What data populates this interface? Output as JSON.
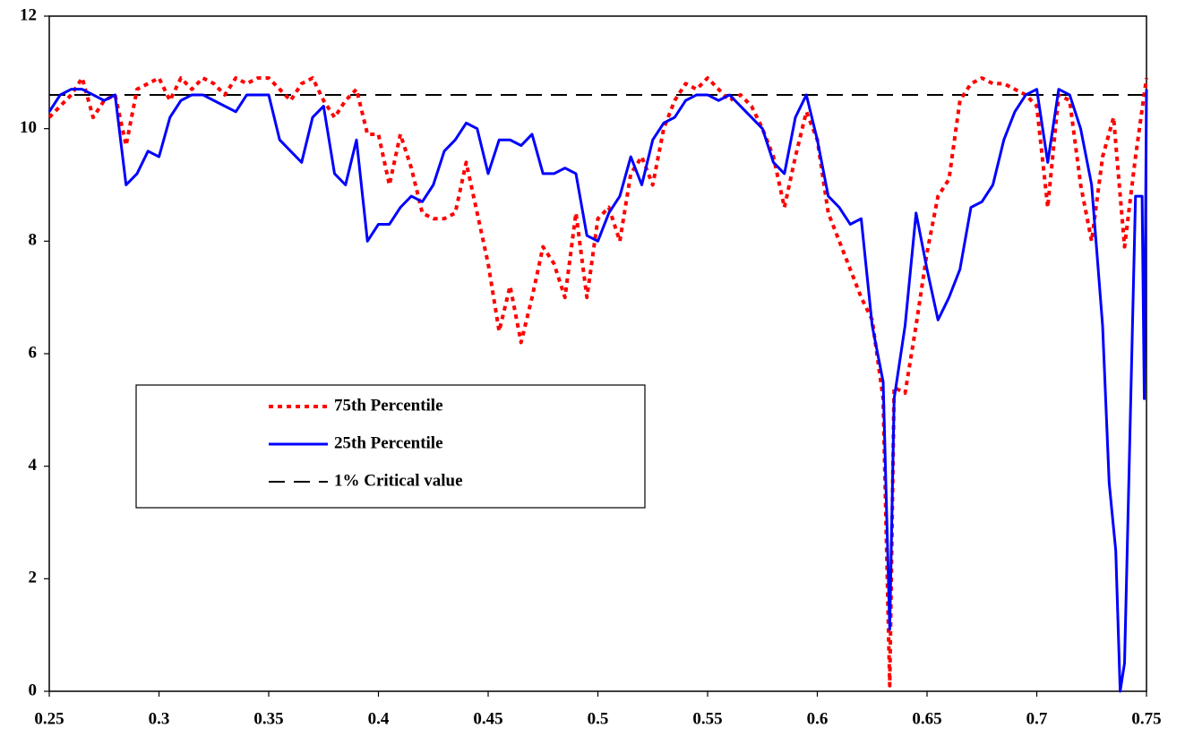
{
  "chart_data": {
    "type": "line",
    "series": [
      {
        "name": "75th Percentile",
        "color": "#ff0000",
        "dash": "dotted",
        "x": [
          0.25,
          0.255,
          0.26,
          0.265,
          0.27,
          0.275,
          0.28,
          0.285,
          0.29,
          0.295,
          0.3,
          0.305,
          0.31,
          0.315,
          0.32,
          0.325,
          0.33,
          0.335,
          0.34,
          0.345,
          0.35,
          0.355,
          0.36,
          0.365,
          0.37,
          0.375,
          0.38,
          0.385,
          0.39,
          0.395,
          0.4,
          0.405,
          0.41,
          0.415,
          0.42,
          0.425,
          0.43,
          0.435,
          0.44,
          0.445,
          0.45,
          0.455,
          0.46,
          0.465,
          0.47,
          0.475,
          0.48,
          0.485,
          0.49,
          0.495,
          0.5,
          0.505,
          0.51,
          0.515,
          0.52,
          0.525,
          0.53,
          0.535,
          0.54,
          0.545,
          0.55,
          0.555,
          0.56,
          0.565,
          0.57,
          0.575,
          0.58,
          0.585,
          0.59,
          0.595,
          0.6,
          0.605,
          0.61,
          0.615,
          0.62,
          0.625,
          0.63,
          0.633,
          0.635,
          0.64,
          0.645,
          0.65,
          0.655,
          0.66,
          0.665,
          0.67,
          0.675,
          0.68,
          0.685,
          0.69,
          0.695,
          0.7,
          0.705,
          0.71,
          0.715,
          0.72,
          0.725,
          0.73,
          0.735,
          0.74,
          0.745,
          0.75
        ],
        "values": [
          10.2,
          10.4,
          10.6,
          10.9,
          10.2,
          10.5,
          10.6,
          9.7,
          10.7,
          10.8,
          10.9,
          10.5,
          10.9,
          10.7,
          10.9,
          10.8,
          10.6,
          10.9,
          10.8,
          10.9,
          10.9,
          10.7,
          10.5,
          10.8,
          10.9,
          10.5,
          10.2,
          10.5,
          10.7,
          9.9,
          9.9,
          9.0,
          9.9,
          9.3,
          8.5,
          8.4,
          8.4,
          8.5,
          9.4,
          8.5,
          7.6,
          6.4,
          7.2,
          6.2,
          7.0,
          7.9,
          7.6,
          7.0,
          8.5,
          7.0,
          8.4,
          8.6,
          8.0,
          9.2,
          9.5,
          9.0,
          10.0,
          10.5,
          10.8,
          10.7,
          10.9,
          10.7,
          10.5,
          10.6,
          10.4,
          10.0,
          9.5,
          8.6,
          9.5,
          10.3,
          9.8,
          8.5,
          8.0,
          7.5,
          7.0,
          6.6,
          5.2,
          0.1,
          5.4,
          5.3,
          6.5,
          7.8,
          8.8,
          9.1,
          10.5,
          10.8,
          10.9,
          10.8,
          10.8,
          10.7,
          10.6,
          10.4,
          8.6,
          10.6,
          10.5,
          9.0,
          8.0,
          9.5,
          10.2,
          7.9,
          9.5,
          10.9
        ]
      },
      {
        "name": "25th Percentile",
        "color": "#0000ff",
        "dash": "solid",
        "x": [
          0.25,
          0.255,
          0.26,
          0.265,
          0.27,
          0.275,
          0.28,
          0.285,
          0.29,
          0.295,
          0.3,
          0.305,
          0.31,
          0.315,
          0.32,
          0.325,
          0.33,
          0.335,
          0.34,
          0.345,
          0.35,
          0.355,
          0.36,
          0.365,
          0.37,
          0.375,
          0.38,
          0.385,
          0.39,
          0.395,
          0.4,
          0.405,
          0.41,
          0.415,
          0.42,
          0.425,
          0.43,
          0.435,
          0.44,
          0.445,
          0.45,
          0.455,
          0.46,
          0.465,
          0.47,
          0.475,
          0.48,
          0.485,
          0.49,
          0.495,
          0.5,
          0.505,
          0.51,
          0.515,
          0.52,
          0.525,
          0.53,
          0.535,
          0.54,
          0.545,
          0.55,
          0.555,
          0.56,
          0.565,
          0.57,
          0.575,
          0.58,
          0.585,
          0.59,
          0.595,
          0.6,
          0.605,
          0.61,
          0.615,
          0.62,
          0.625,
          0.63,
          0.633,
          0.635,
          0.64,
          0.645,
          0.65,
          0.655,
          0.66,
          0.665,
          0.67,
          0.675,
          0.68,
          0.685,
          0.69,
          0.695,
          0.7,
          0.705,
          0.71,
          0.715,
          0.72,
          0.725,
          0.73,
          0.733,
          0.736,
          0.738,
          0.74,
          0.742,
          0.745,
          0.748,
          0.749,
          0.75
        ],
        "values": [
          10.3,
          10.6,
          10.7,
          10.7,
          10.6,
          10.5,
          10.6,
          9.0,
          9.2,
          9.6,
          9.5,
          10.2,
          10.5,
          10.6,
          10.6,
          10.5,
          10.4,
          10.3,
          10.6,
          10.6,
          10.6,
          9.8,
          9.6,
          9.4,
          10.2,
          10.4,
          9.2,
          9.0,
          9.8,
          8.0,
          8.3,
          8.3,
          8.6,
          8.8,
          8.7,
          9.0,
          9.6,
          9.8,
          10.1,
          10.0,
          9.2,
          9.8,
          9.8,
          9.7,
          9.9,
          9.2,
          9.2,
          9.3,
          9.2,
          8.1,
          8.0,
          8.5,
          8.8,
          9.5,
          9.0,
          9.8,
          10.1,
          10.2,
          10.5,
          10.6,
          10.6,
          10.5,
          10.6,
          10.4,
          10.2,
          10.0,
          9.4,
          9.2,
          10.2,
          10.6,
          9.8,
          8.8,
          8.6,
          8.3,
          8.4,
          6.5,
          5.5,
          1.1,
          5.2,
          6.5,
          8.5,
          7.5,
          6.6,
          7.0,
          7.5,
          8.6,
          8.7,
          9.0,
          9.8,
          10.3,
          10.6,
          10.7,
          9.4,
          10.7,
          10.6,
          10.0,
          9.0,
          6.5,
          3.7,
          2.5,
          0,
          0.5,
          3.8,
          8.8,
          8.8,
          5.2,
          10.7
        ]
      },
      {
        "name": "1% Critical value",
        "color": "#000000",
        "dash": "dashed",
        "x": [
          0.25,
          0.75
        ],
        "values": [
          10.6,
          10.6
        ]
      }
    ],
    "xlim": [
      0.25,
      0.75
    ],
    "xticks": [
      0.25,
      0.3,
      0.35,
      0.4,
      0.45,
      0.5,
      0.55,
      0.6,
      0.65,
      0.7,
      0.75
    ],
    "ylim": [
      0,
      12
    ],
    "yticks": [
      0,
      2,
      4,
      6,
      8,
      10,
      12
    ],
    "grid": false
  }
}
